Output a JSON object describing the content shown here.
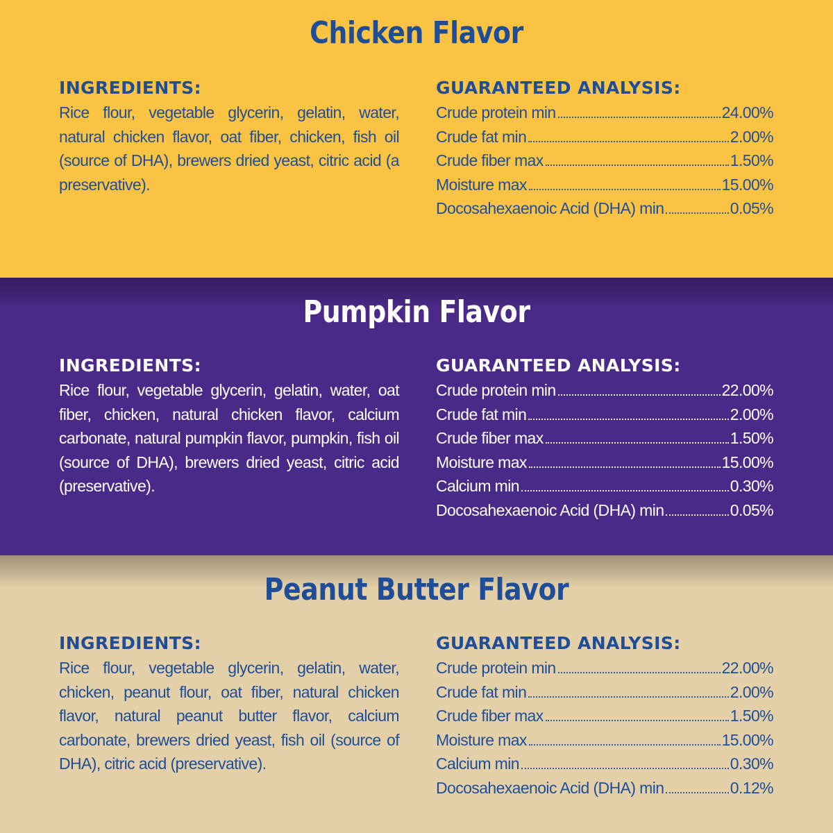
{
  "colors": {
    "chicken_bg": "#FBC343",
    "pumpkin_bg": "#4A2A88",
    "peanut_bg": "#E3CFA8",
    "blue_text": "#1F4E96",
    "white_text": "#FFFFFF"
  },
  "sections": [
    {
      "title": "Chicken Flavor",
      "ingredients_heading": "INGREDIENTS:",
      "ingredients": "Rice flour, vegetable glycerin, gelatin, water, natural chicken flavor, oat fiber, chicken, fish oil (source of DHA), brewers dried yeast, citric acid (a preservative).",
      "analysis_heading": "GUARANTEED ANALYSIS:",
      "analysis": [
        {
          "label": "Crude protein min",
          "value": "24.00%"
        },
        {
          "label": "Crude fat min",
          "value": "2.00%"
        },
        {
          "label": "Crude fiber max",
          "value": "1.50%"
        },
        {
          "label": "Moisture max",
          "value": "15.00%"
        },
        {
          "label": "Docosahexaenoic Acid (DHA) min",
          "value": "0.05%"
        }
      ]
    },
    {
      "title": "Pumpkin Flavor",
      "ingredients_heading": "INGREDIENTS:",
      "ingredients": "Rice flour, vegetable glycerin, gelatin, water, oat fiber, chicken, natural chicken flavor, calcium carbonate, natural pumpkin flavor, pumpkin, fish oil (source of DHA), brewers dried yeast, citric acid (preservative).",
      "analysis_heading": "GUARANTEED ANALYSIS:",
      "analysis": [
        {
          "label": "Crude protein min",
          "value": "22.00%"
        },
        {
          "label": "Crude fat min",
          "value": "2.00%"
        },
        {
          "label": "Crude fiber max",
          "value": "1.50%"
        },
        {
          "label": "Moisture max",
          "value": "15.00%"
        },
        {
          "label": "Calcium min",
          "value": "0.30%"
        },
        {
          "label": "Docosahexaenoic Acid (DHA) min",
          "value": "0.05%"
        }
      ]
    },
    {
      "title": "Peanut Butter Flavor",
      "ingredients_heading": "INGREDIENTS:",
      "ingredients": "Rice flour, vegetable glycerin, gelatin, water, chicken, peanut flour, oat fiber, natural chicken flavor, natural peanut butter flavor, calcium carbonate, brewers dried yeast, fish oil (source of DHA), citric acid (preservative).",
      "analysis_heading": "GUARANTEED ANALYSIS:",
      "analysis": [
        {
          "label": "Crude protein min",
          "value": "22.00%"
        },
        {
          "label": "Crude fat min",
          "value": "2.00%"
        },
        {
          "label": "Crude fiber max",
          "value": "1.50%"
        },
        {
          "label": "Moisture max",
          "value": "15.00%"
        },
        {
          "label": "Calcium min",
          "value": "0.30%"
        },
        {
          "label": "Docosahexaenoic Acid (DHA) min",
          "value": "0.12%"
        }
      ]
    }
  ]
}
